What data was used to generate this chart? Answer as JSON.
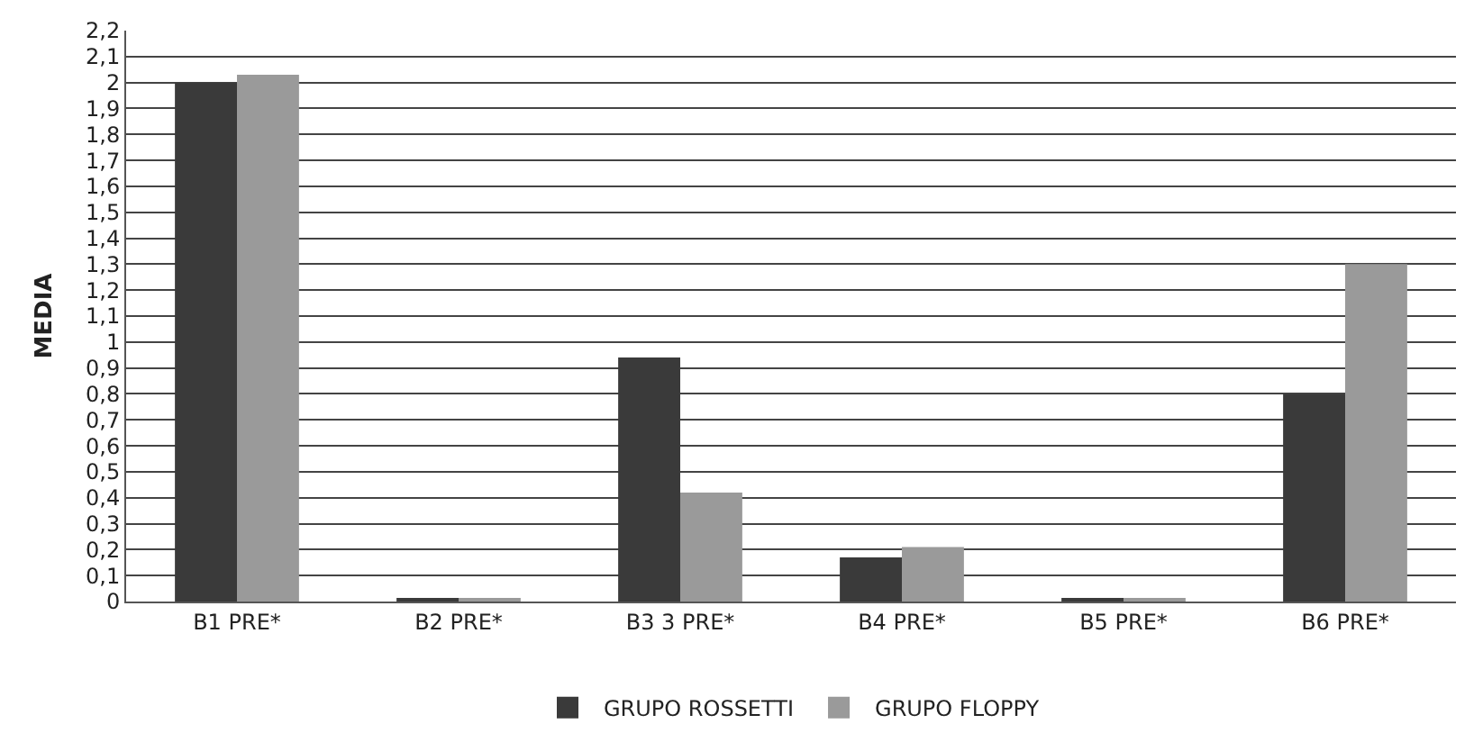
{
  "chart_data": {
    "type": "bar",
    "ylabel": "MEDIA",
    "categories": [
      "B1 PRE*",
      "B2 PRE*",
      "B3 3 PRE*",
      "B4 PRE*",
      "B5 PRE*",
      "B6 PRE*"
    ],
    "series": [
      {
        "name": "GRUPO ROSSETTI",
        "color": "#3a3a3a",
        "values": [
          2.0,
          0.01,
          0.94,
          0.17,
          0.01,
          0.8
        ]
      },
      {
        "name": "GRUPO FLOPPY",
        "color": "#9a9a9a",
        "values": [
          2.03,
          0.01,
          0.42,
          0.21,
          0.01,
          1.3
        ]
      }
    ],
    "ylim": [
      0,
      2.2
    ],
    "yticks": [
      0,
      {
        "value": 0.1,
        "label": "0,1"
      },
      {
        "value": 0.2,
        "label": "0,2"
      },
      {
        "value": 0.3,
        "label": "0,3"
      },
      {
        "value": 0.4,
        "label": "0,4"
      },
      {
        "value": 0.5,
        "label": "0,5"
      },
      {
        "value": 0.6,
        "label": "0,6"
      },
      {
        "value": 0.7,
        "label": "0,7"
      },
      {
        "value": 0.8,
        "label": "0,8"
      },
      {
        "value": 0.9,
        "label": "0,9"
      },
      1,
      {
        "value": 1.1,
        "label": "1,1"
      },
      {
        "value": 1.2,
        "label": "1,2"
      },
      {
        "value": 1.3,
        "label": "1,3"
      },
      {
        "value": 1.4,
        "label": "1,4"
      },
      {
        "value": 1.5,
        "label": "1,5"
      },
      {
        "value": 1.6,
        "label": "1,6"
      },
      {
        "value": 1.7,
        "label": "1,7"
      },
      {
        "value": 1.8,
        "label": "1,8"
      },
      {
        "value": 1.9,
        "label": "1,9"
      },
      2,
      {
        "value": 2.1,
        "label": "2,1"
      },
      {
        "value": 2.2,
        "label": "2,2"
      }
    ],
    "grid": "y",
    "legend": "bottom"
  }
}
